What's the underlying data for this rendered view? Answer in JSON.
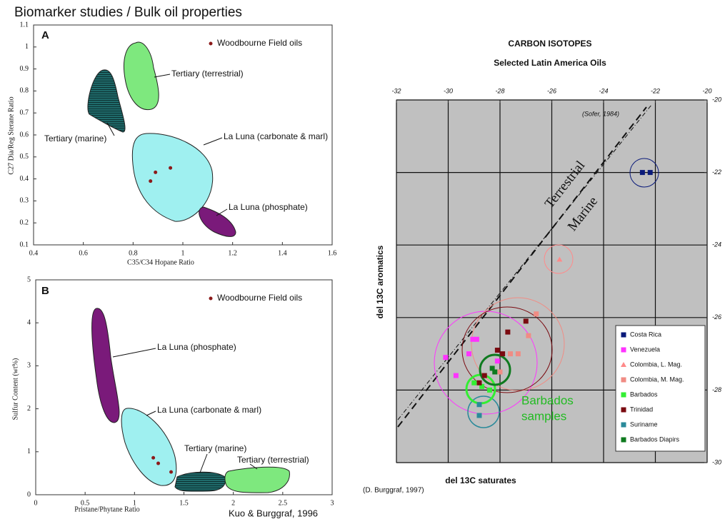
{
  "title": "Biomarker studies / Bulk oil properties",
  "chart_data": [
    {
      "type": "scatter",
      "panel": "A",
      "xlabel": "C35/C34 Hopane Ratio",
      "ylabel": "C27 Dia/Reg Sterane Ratio",
      "xlim": [
        0.4,
        1.6
      ],
      "xticks": [
        0.4,
        0.6,
        0.8,
        1,
        1.2,
        1.4,
        1.6
      ],
      "ylim": [
        0.1,
        1.1
      ],
      "yticks": [
        0.1,
        0.2,
        0.3,
        0.4,
        0.5,
        0.6,
        0.7,
        0.8,
        0.9,
        1,
        1.1
      ],
      "grid": false,
      "legend": "upper right",
      "series": [
        {
          "name": "Woodbourne Field oils",
          "color": "#8b1a1a",
          "marker": "circle",
          "x": [
            0.87,
            0.89,
            0.95
          ],
          "values": [
            0.39,
            0.43,
            0.45
          ]
        }
      ],
      "annotations": [
        "Tertiary (terrestrial)",
        "Tertiary (marine)",
        "La Luna (carbonate & marl)",
        "La Luna (phosphate)"
      ]
    },
    {
      "type": "scatter",
      "panel": "B",
      "xlabel": "Pristane/Phytane Ratio",
      "ylabel": "Sulfur Content (wt%)",
      "xlim": [
        0,
        3
      ],
      "xticks": [
        0,
        0.5,
        1,
        1.5,
        2,
        2.5,
        3
      ],
      "ylim": [
        0,
        5
      ],
      "yticks": [
        0,
        1,
        2,
        3,
        4,
        5
      ],
      "grid": false,
      "legend": "upper right",
      "series": [
        {
          "name": "Woodbourne Field oils",
          "color": "#8b1a1a",
          "marker": "circle",
          "x": [
            1.19,
            1.24,
            1.37
          ],
          "values": [
            0.86,
            0.73,
            0.53
          ]
        }
      ],
      "annotations": [
        "La Luna (phosphate)",
        "La Luna (carbonate & marl)",
        "Tertiary (marine)",
        "Tertiary (terrestrial)"
      ],
      "source": "Kuo & Burggraf, 1996"
    },
    {
      "type": "scatter",
      "title": "CARBON ISOTOPES",
      "subtitle": "Selected Latin America Oils",
      "xlabel": "del 13C saturates",
      "ylabel": "del 13C aromatics",
      "xlim": [
        -32,
        -20
      ],
      "xticks": [
        -32,
        -30,
        -28,
        -26,
        -24,
        -22,
        -20
      ],
      "ylim": [
        -30,
        -20
      ],
      "yticks": [
        -20,
        -22,
        -24,
        -26,
        -28,
        -30
      ],
      "grid": true,
      "legend": "lower right",
      "series": [
        {
          "name": "Costa Rica",
          "color": "#0a1a7a",
          "marker": "square",
          "x": [
            -22.5,
            -22.2
          ],
          "values": [
            -22,
            -22
          ]
        },
        {
          "name": "Venezuela",
          "color": "#ff33ff",
          "marker": "square",
          "x": [
            -30.1,
            -29.7,
            -29.2,
            -29.05,
            -28.9,
            -28.1
          ],
          "values": [
            -27.1,
            -27.6,
            -27.0,
            -26.6,
            -26.6,
            -27.2
          ]
        },
        {
          "name": "Colombia, L. Mag.",
          "color": "#ff8a8a",
          "marker": "triangle",
          "x": [
            -25.7
          ],
          "values": [
            -24.4
          ]
        },
        {
          "name": "Colombia, M. Mag.",
          "color": "#f08c84",
          "marker": "square",
          "x": [
            -26.6,
            -26.9,
            -27.3,
            -27.6,
            -28.0
          ],
          "values": [
            -25.9,
            -26.5,
            -27.0,
            -27.0,
            -27.5
          ]
        },
        {
          "name": "Barbados",
          "color": "#33ee33",
          "marker": "square",
          "x": [
            -29.0,
            -28.7,
            -28.4
          ],
          "values": [
            -27.8,
            -27.9,
            -28.0
          ]
        },
        {
          "name": "Trinidad",
          "color": "#7a0a10",
          "marker": "square",
          "x": [
            -27.7,
            -27.0,
            -28.1,
            -27.9,
            -28.6,
            -28.8
          ],
          "values": [
            -26.4,
            -26.1,
            -26.9,
            -27.0,
            -27.6,
            -27.8
          ]
        },
        {
          "name": "Suriname",
          "color": "#2a8a9a",
          "marker": "square",
          "x": [
            -28.8,
            -28.8
          ],
          "values": [
            -28.7,
            -28.4
          ]
        },
        {
          "name": "Barbados Diapirs",
          "color": "#0f7a1f",
          "marker": "square",
          "x": [
            -28.3,
            -28.2
          ],
          "values": [
            -27.4,
            -27.5
          ]
        }
      ],
      "annotations": [
        "(Sofer, 1984)",
        "Terrestrial",
        "Marine",
        "Barbados",
        "samples"
      ],
      "source": "(D. Burggraf, 1997)"
    }
  ]
}
